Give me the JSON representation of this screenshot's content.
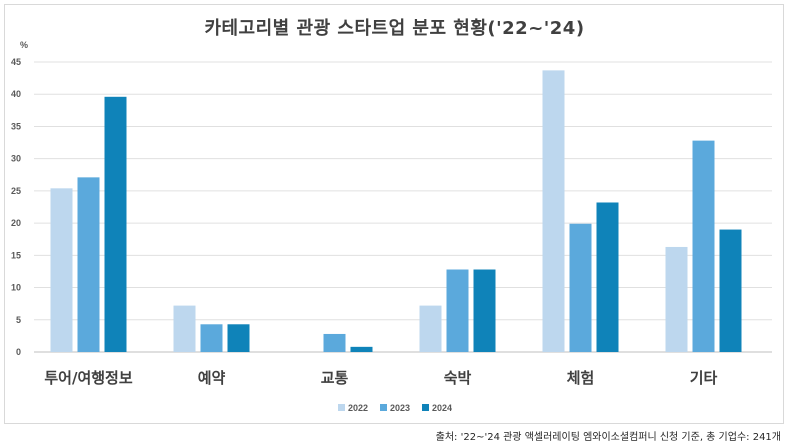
{
  "chart_data": {
    "type": "bar",
    "title": "카테고리별 관광 스타트업 분포 현황('22~'24)",
    "unit": "%",
    "categories": [
      "투어/여행정보",
      "예약",
      "교통",
      "숙박",
      "체험",
      "기타"
    ],
    "series": [
      {
        "name": "2022",
        "color": "#bdd7ee",
        "values": [
          25.4,
          7.2,
          0,
          7.2,
          43.7,
          16.3
        ]
      },
      {
        "name": "2023",
        "color": "#5ba9dc",
        "values": [
          27.1,
          4.3,
          2.8,
          12.8,
          19.9,
          32.8
        ]
      },
      {
        "name": "2024",
        "color": "#0f83b9",
        "values": [
          39.6,
          4.3,
          0.8,
          12.8,
          23.2,
          19.0
        ]
      }
    ],
    "ylim": [
      0,
      45
    ],
    "yticks": [
      0,
      5,
      10,
      15,
      20,
      25,
      30,
      35,
      40,
      45
    ],
    "grid": true,
    "legend": "bottom",
    "source": "출처: '22~'24 관광 액셀러레이팅 엠와이소셜컴퍼니 신청 기준, 총 기업수: 241개"
  }
}
